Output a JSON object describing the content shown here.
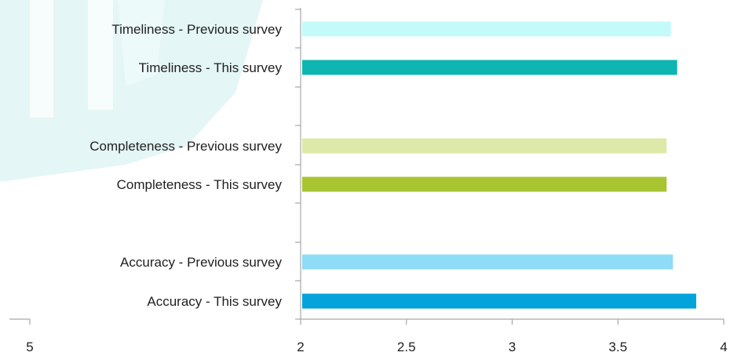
{
  "chart_data": {
    "type": "bar",
    "orientation": "horizontal",
    "title": "",
    "xlabel": "",
    "ylabel": "",
    "xlim": [
      2,
      4
    ],
    "x_ticks": [
      2,
      2.5,
      3,
      3.5,
      4
    ],
    "x_tick_labels": [
      "2",
      "2.5",
      "3",
      "3.5",
      "4"
    ],
    "left_axis_tick_labels": [
      "5"
    ],
    "grid": false,
    "legend": "none",
    "categories": [
      "Timeliness - Previous survey",
      "Timeliness - This survey",
      "Completeness - Previous survey",
      "Completeness - This survey",
      "Accuracy - Previous survey",
      "Accuracy - This survey"
    ],
    "values": [
      3.75,
      3.78,
      3.73,
      3.73,
      3.76,
      3.87
    ],
    "colors": [
      "#c4fafa",
      "#0fb5b0",
      "#dce9a8",
      "#a8c430",
      "#8fdcf6",
      "#04a3dc"
    ]
  },
  "decoration": {
    "watermark_colors": [
      "#e4f6f5",
      "#ecfaf9"
    ]
  }
}
